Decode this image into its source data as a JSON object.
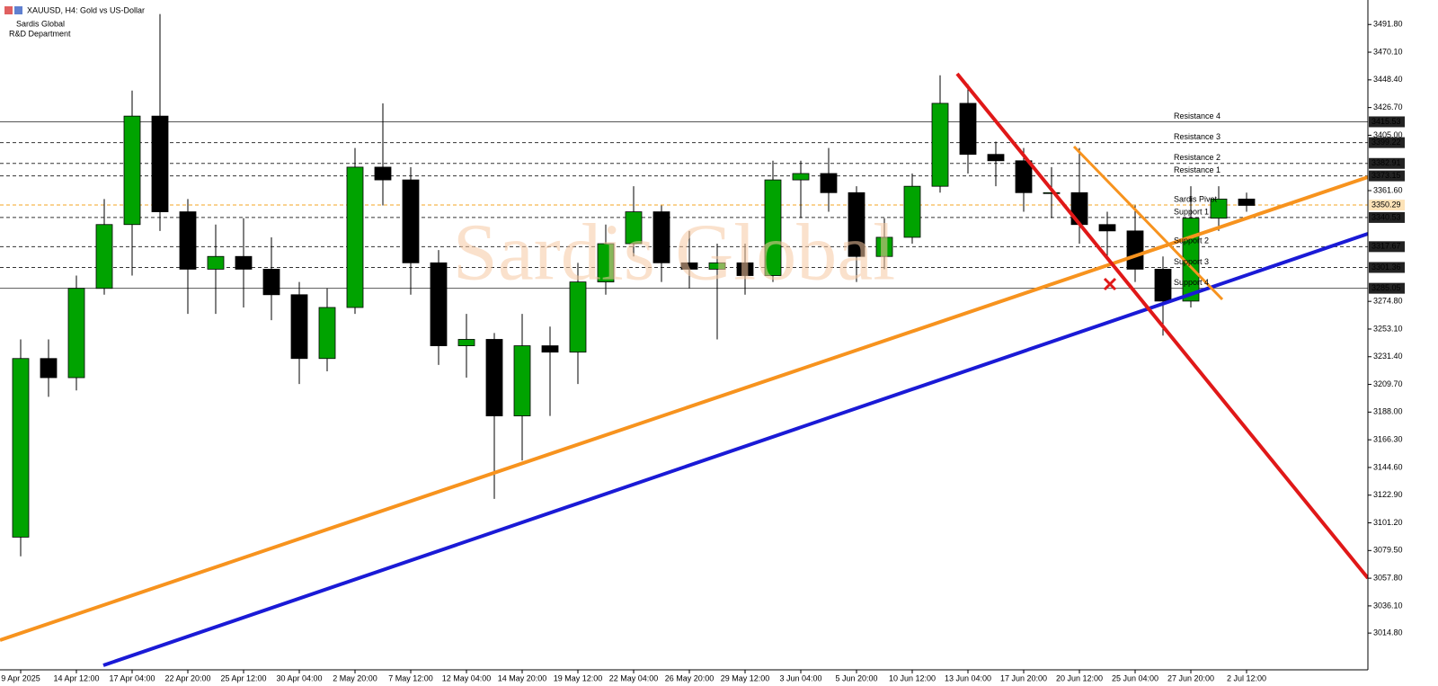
{
  "chart_data": {
    "type": "candlestick",
    "title": "XAUUSD, H4:  Gold vs US-Dollar",
    "subtitle": [
      "Sardis Global",
      "R&D Department"
    ],
    "watermark": "Sardis Global",
    "categories": [
      "9 Apr 2025",
      null,
      "14 Apr 12:00",
      null,
      "17 Apr 04:00",
      null,
      "22 Apr 20:00",
      null,
      "25 Apr 12:00",
      null,
      "30 Apr 04:00",
      null,
      "2 May 20:00",
      null,
      "7 May 12:00",
      null,
      "12 May 04:00",
      null,
      "14 May 20:00",
      null,
      "19 May 12:00",
      null,
      "22 May 04:00",
      null,
      "26 May 20:00",
      null,
      "29 May 12:00",
      null,
      "3 Jun 04:00",
      null,
      "5 Jun 20:00",
      null,
      "10 Jun 12:00",
      null,
      "13 Jun 04:00",
      null,
      "17 Jun 20:00",
      null,
      "20 Jun 12:00",
      null,
      "25 Jun 04:00",
      null,
      "27 Jun 20:00",
      null,
      "2 Jul 12:00"
    ],
    "open": [
      3090,
      3230,
      3215,
      3285,
      3335,
      3420,
      3345,
      3300,
      3310,
      3300,
      3280,
      3230,
      3270,
      3380,
      3370,
      3305,
      3240,
      3245,
      3185,
      3240,
      3235,
      3290,
      3320,
      3345,
      3305,
      3300,
      3305,
      3295,
      3370,
      3375,
      3360,
      3310,
      3325,
      3365,
      3430,
      3390,
      3385,
      3360,
      3360,
      3335,
      3330,
      3300,
      3275,
      3340,
      3355
    ],
    "high": [
      3245,
      3245,
      3295,
      3355,
      3440,
      3500,
      3355,
      3335,
      3340,
      3325,
      3290,
      3285,
      3395,
      3430,
      3380,
      3315,
      3265,
      3250,
      3265,
      3255,
      3305,
      3335,
      3365,
      3350,
      3330,
      3320,
      3320,
      3385,
      3385,
      3395,
      3365,
      3340,
      3375,
      3452,
      3445,
      3400,
      3395,
      3380,
      3395,
      3345,
      3350,
      3310,
      3365,
      3365,
      3360
    ],
    "low": [
      3075,
      3200,
      3205,
      3280,
      3295,
      3330,
      3265,
      3265,
      3270,
      3260,
      3210,
      3220,
      3265,
      3350,
      3280,
      3225,
      3215,
      3120,
      3150,
      3185,
      3210,
      3280,
      3310,
      3290,
      3285,
      3245,
      3280,
      3290,
      3340,
      3345,
      3290,
      3300,
      3320,
      3360,
      3375,
      3365,
      3345,
      3340,
      3320,
      3310,
      3290,
      3248,
      3270,
      3330,
      3345
    ],
    "close": [
      3230,
      3215,
      3285,
      3335,
      3420,
      3345,
      3300,
      3310,
      3300,
      3280,
      3230,
      3270,
      3380,
      3370,
      3305,
      3240,
      3245,
      3185,
      3240,
      3235,
      3290,
      3320,
      3345,
      3305,
      3300,
      3305,
      3295,
      3370,
      3375,
      3360,
      3310,
      3325,
      3365,
      3430,
      3390,
      3385,
      3360,
      3360,
      3335,
      3330,
      3300,
      3275,
      3340,
      3355,
      3350
    ],
    "up_color": "#00a300",
    "down_color": "#000000",
    "ylim": [
      2986,
      3511
    ],
    "yticks": [
      {
        "value": 3014.8,
        "label": "3014.80"
      },
      {
        "value": 3036.1,
        "label": "3036.10"
      },
      {
        "value": 3057.8,
        "label": "3057.80"
      },
      {
        "value": 3079.5,
        "label": "3079.50"
      },
      {
        "value": 3101.2,
        "label": "3101.20"
      },
      {
        "value": 3122.9,
        "label": "3122.90"
      },
      {
        "value": 3144.6,
        "label": "3144.60"
      },
      {
        "value": 3166.3,
        "label": "3166.30"
      },
      {
        "value": 3188.0,
        "label": "3188.00"
      },
      {
        "value": 3209.7,
        "label": "3209.70"
      },
      {
        "value": 3231.4,
        "label": "3231.40"
      },
      {
        "value": 3253.1,
        "label": "3253.10"
      },
      {
        "value": 3274.8,
        "label": "3274.80"
      },
      {
        "value": 3361.6,
        "label": "3361.60"
      },
      {
        "value": 3405.0,
        "label": "3405.00"
      },
      {
        "value": 3426.7,
        "label": "3426.70"
      },
      {
        "value": 3448.4,
        "label": "3448.40"
      },
      {
        "value": 3470.1,
        "label": "3470.10"
      },
      {
        "value": 3491.8,
        "label": "3491.80"
      }
    ],
    "levels": [
      {
        "name": "Resistance 4",
        "value": 3415.53,
        "style": "solid",
        "color": "#555555"
      },
      {
        "name": "Resistance 3",
        "value": 3399.22,
        "style": "dashed",
        "color": "#333333"
      },
      {
        "name": "Resistance 2",
        "value": 3382.91,
        "style": "dashed",
        "color": "#333333"
      },
      {
        "name": "Resistance 1",
        "value": 3373.15,
        "style": "dashed",
        "color": "#333333"
      },
      {
        "name": "Sardis Pivot",
        "value": 3350.29,
        "style": "dashed",
        "color": "#f5a623"
      },
      {
        "name": "Support 1",
        "value": 3340.53,
        "style": "dashed",
        "color": "#333333"
      },
      {
        "name": "Support 2",
        "value": 3317.67,
        "style": "dashed",
        "color": "#333333"
      },
      {
        "name": "Support 3",
        "value": 3301.36,
        "style": "dashed",
        "color": "#333333"
      },
      {
        "name": "Support 4",
        "value": 3285.05,
        "style": "solid",
        "color": "#555555"
      }
    ]
  }
}
